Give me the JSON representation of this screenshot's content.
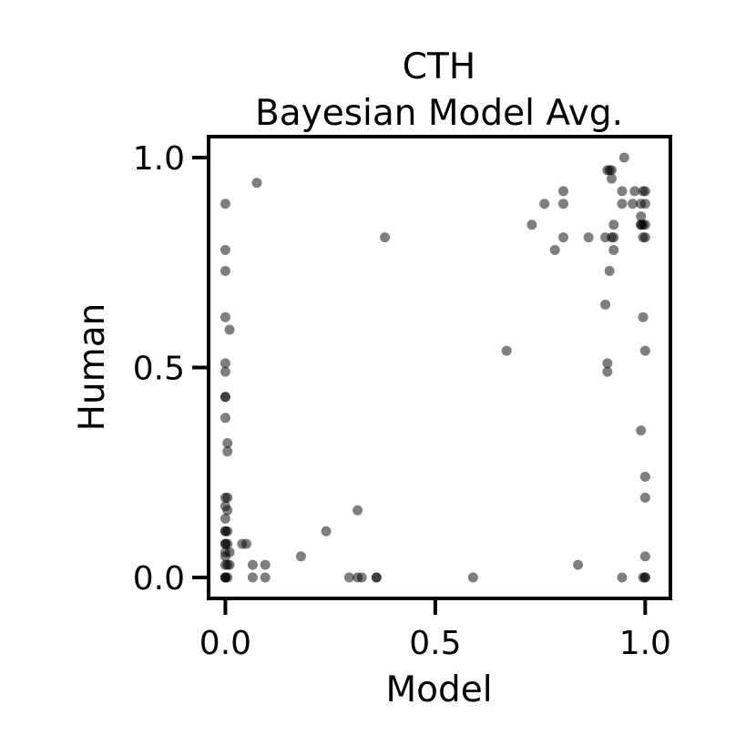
{
  "chart_data": {
    "type": "scatter",
    "title": "CTH",
    "subtitle": "Bayesian Model Avg.",
    "xlabel": "Model",
    "ylabel": "Human",
    "xlim": [
      -0.04,
      1.06
    ],
    "ylim": [
      -0.05,
      1.05
    ],
    "xticks": [
      0.0,
      0.5,
      1.0
    ],
    "yticks": [
      0.0,
      0.5,
      1.0
    ],
    "xtick_labels": [
      "0.0",
      "0.5",
      "1.0"
    ],
    "ytick_labels": [
      "0.0",
      "0.5",
      "1.0"
    ],
    "grid": false,
    "point_color": "#000000",
    "point_alpha": 0.5,
    "points": [
      [
        0.0,
        0.89
      ],
      [
        0.0,
        0.78
      ],
      [
        0.0,
        0.73
      ],
      [
        0.0,
        0.62
      ],
      [
        0.01,
        0.59
      ],
      [
        0.0,
        0.51
      ],
      [
        0.0,
        0.49
      ],
      [
        0.0,
        0.43
      ],
      [
        0.0,
        0.43
      ],
      [
        0.0,
        0.38
      ],
      [
        0.005,
        0.32
      ],
      [
        0.005,
        0.3
      ],
      [
        0.0,
        0.19
      ],
      [
        0.005,
        0.19
      ],
      [
        0.0,
        0.17
      ],
      [
        0.005,
        0.16
      ],
      [
        0.0,
        0.14
      ],
      [
        0.0,
        0.11
      ],
      [
        0.005,
        0.11
      ],
      [
        0.0,
        0.11
      ],
      [
        0.0,
        0.08
      ],
      [
        0.005,
        0.08
      ],
      [
        0.0,
        0.08
      ],
      [
        0.0,
        0.06
      ],
      [
        0.01,
        0.06
      ],
      [
        0.0,
        0.05
      ],
      [
        0.0,
        0.03
      ],
      [
        0.005,
        0.03
      ],
      [
        0.01,
        0.03
      ],
      [
        0.0,
        0.0
      ],
      [
        0.0,
        0.0
      ],
      [
        0.005,
        0.0
      ],
      [
        0.0,
        0.0
      ],
      [
        0.04,
        0.08
      ],
      [
        0.05,
        0.08
      ],
      [
        0.065,
        0.03
      ],
      [
        0.065,
        0.0
      ],
      [
        0.095,
        0.03
      ],
      [
        0.095,
        0.0
      ],
      [
        0.075,
        0.94
      ],
      [
        0.18,
        0.05
      ],
      [
        0.24,
        0.11
      ],
      [
        0.295,
        0.0
      ],
      [
        0.315,
        0.16
      ],
      [
        0.315,
        0.0
      ],
      [
        0.325,
        0.0
      ],
      [
        0.36,
        0.0
      ],
      [
        0.36,
        0.0
      ],
      [
        0.38,
        0.81
      ],
      [
        0.59,
        0.0
      ],
      [
        0.67,
        0.54
      ],
      [
        0.73,
        0.84
      ],
      [
        0.76,
        0.89
      ],
      [
        0.785,
        0.78
      ],
      [
        0.805,
        0.92
      ],
      [
        0.805,
        0.89
      ],
      [
        0.805,
        0.81
      ],
      [
        0.84,
        0.03
      ],
      [
        0.865,
        0.81
      ],
      [
        0.905,
        0.81
      ],
      [
        0.91,
        0.97
      ],
      [
        0.915,
        0.97
      ],
      [
        0.92,
        0.97
      ],
      [
        0.92,
        0.95
      ],
      [
        0.905,
        0.65
      ],
      [
        0.91,
        0.51
      ],
      [
        0.91,
        0.49
      ],
      [
        0.915,
        0.73
      ],
      [
        0.92,
        0.81
      ],
      [
        0.925,
        0.81
      ],
      [
        0.925,
        0.78
      ],
      [
        0.925,
        0.84
      ],
      [
        0.945,
        0.92
      ],
      [
        0.945,
        0.89
      ],
      [
        0.95,
        1.0
      ],
      [
        0.945,
        0.0
      ],
      [
        0.97,
        0.89
      ],
      [
        0.975,
        0.92
      ],
      [
        0.99,
        0.89
      ],
      [
        0.99,
        0.86
      ],
      [
        0.99,
        0.84
      ],
      [
        0.99,
        0.84
      ],
      [
        0.995,
        0.84
      ],
      [
        0.995,
        0.81
      ],
      [
        1.0,
        0.81
      ],
      [
        1.0,
        0.84
      ],
      [
        1.0,
        0.92
      ],
      [
        1.0,
        0.89
      ],
      [
        0.995,
        0.92
      ],
      [
        0.995,
        0.62
      ],
      [
        1.0,
        0.54
      ],
      [
        0.99,
        0.35
      ],
      [
        1.0,
        0.24
      ],
      [
        1.0,
        0.19
      ],
      [
        1.0,
        0.05
      ],
      [
        0.995,
        0.0
      ],
      [
        1.0,
        0.0
      ],
      [
        1.0,
        0.0
      ]
    ]
  }
}
